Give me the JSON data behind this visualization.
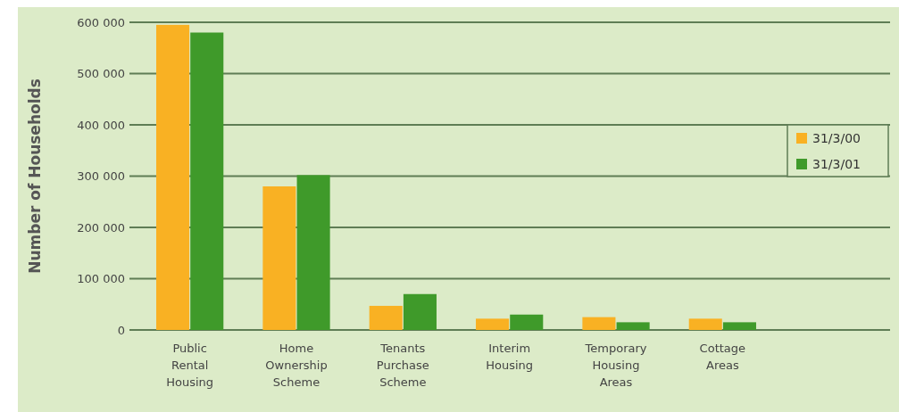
{
  "chart_data": {
    "type": "bar",
    "ylabel": "Number of Households",
    "categories": [
      "Public\nRental\nHousing",
      "Home\nOwnership\nScheme",
      "Tenants\nPurchase\nScheme",
      "Interim\nHousing",
      "Temporary\nHousing\nAreas",
      "Cottage\nAreas"
    ],
    "series": [
      {
        "name": "31/3/00",
        "color": "#f9b123",
        "values": [
          595000,
          280000,
          47000,
          22000,
          25000,
          22000
        ]
      },
      {
        "name": "31/3/01",
        "color": "#3f9a2a",
        "values": [
          580000,
          302000,
          70000,
          30000,
          15000,
          15000
        ]
      }
    ],
    "ylim": [
      0,
      600000
    ],
    "yticks": [
      {
        "value": 0,
        "label": "0"
      },
      {
        "value": 100000,
        "label": "100 000"
      },
      {
        "value": 200000,
        "label": "200 000"
      },
      {
        "value": 300000,
        "label": "300 000"
      },
      {
        "value": 400000,
        "label": "400 000"
      },
      {
        "value": 500000,
        "label": "500 000"
      },
      {
        "value": 600000,
        "label": "600 000"
      }
    ],
    "grid": "y",
    "legend": "right"
  }
}
